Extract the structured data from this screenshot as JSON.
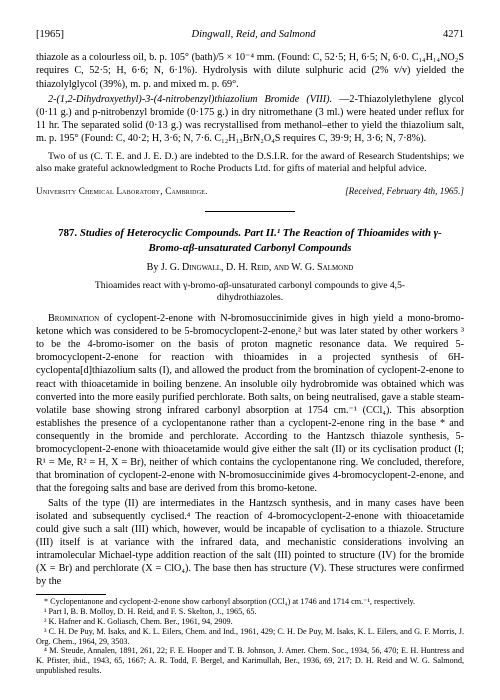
{
  "header": {
    "year": "[1965]",
    "running": "Dingwall, Reid, and Salmond",
    "page": "4271"
  },
  "top_paragraphs": {
    "p1": "thiazole as a colourless oil, b. p. 105° (bath)/5 × 10⁻⁴ mm. (Found: C, 52·5; H, 6·5; N, 6·0. C₁₄H₁₄NO₂S requires C, 52·5; H, 6·6; N, 6·1%). Hydrolysis with dilute sulphuric acid (2% v/v) yielded the thiazolylglycol (39%), m. p. and mixed m. p. 69°.",
    "p2_title": "2-(1,2-Dihydroxyethyl)-3-(4-nitrobenzyl)thiazolium Bromide (VIII).",
    "p2": "—2-Thiazolylethylene glycol (0·11 g.) and p-nitrobenzyl bromide (0·175 g.) in dry nitromethane (3 ml.) were heated under reflux for 11 hr. The separated solid (0·13 g.) was recrystallised from methanol–ether to yield the thiazolium salt, m. p. 195° (Found: C, 40·2; H, 3·6; N, 7·6. C₁₂H₁₃BrN₂O₄S requires C, 39·9; H, 3·6; N, 7·8%)."
  },
  "ack": "Two of us (C. T. E. and J. E. D.) are indebted to the D.S.I.R. for the award of Research Studentships; we also make grateful acknowledgment to Roche Products Ltd. for gifts of material and helpful advice.",
  "affil": {
    "left": "University Chemical Laboratory, Cambridge.",
    "right": "[Received, February 4th, 1965.]"
  },
  "article": {
    "number": "787.",
    "title": "Studies of Heterocyclic Compounds. Part II.¹ The Reaction of Thioamides with γ-Bromo-αβ-unsaturated Carbonyl Compounds",
    "authors_by": "By",
    "authors": "J. G. Dingwall, D. H. Reid, and W. G. Salmond",
    "abstract": "Thioamides react with γ-bromo-αβ-unsaturated carbonyl compounds to give 4,5-dihydrothiazoles.",
    "body1_lead": "Bromination",
    "body1": " of cyclopent-2-enone with N-bromosuccinimide gives in high yield a mono-bromo-ketone which was considered to be 5-bromocyclopent-2-enone,² but was later stated by other workers ³ to be the 4-bromo-isomer on the basis of proton magnetic resonance data. We required 5-bromocyclopent-2-enone for reaction with thioamides in a projected synthesis of 6H-cyclopenta[d]thiazolium salts (I), and allowed the product from the bromination of cyclopent-2-enone to react with thioacetamide in boiling benzene. An insoluble oily hydrobromide was obtained which was converted into the more easily purified perchlorate. Both salts, on being neutralised, gave a stable steam-volatile base showing strong infrared carbonyl absorption at 1754 cm.⁻¹ (CCl₄). This absorption establishes the presence of a cyclopentanone rather than a cyclopent-2-enone ring in the base * and consequently in the bromide and perchlorate. According to the Hantzsch thiazole synthesis, 5-bromocyclopent-2-enone with thioacetamide would give either the salt (II) or its cyclisation product (I; R¹ = Me, R² = H, X = Br), neither of which contains the cyclopentanone ring. We concluded, therefore, that bromination of cyclopent-2-enone with N-bromosuccinimide gives 4-bromocyclopent-2-enone, and that the foregoing salts and base are derived from this bromo-ketone.",
    "body2": "Salts of the type (II) are intermediates in the Hantzsch synthesis, and in many cases have been isolated and subsequently cyclised.⁴ The reaction of 4-bromocyclopent-2-enone with thioacetamide could give such a salt (III) which, however, would be incapable of cyclisation to a thiazole. Structure (III) itself is at variance with the infrared data, and mechanistic considerations involving an intramolecular Michael-type addition reaction of the salt (III) pointed to structure (IV) for the bromide (X = Br) and perchlorate (X = ClO₄). The base then has structure (V). These structures were confirmed by the"
  },
  "footnotes": {
    "star": "* Cyclopentanone and cyclopent-2-enone show carbonyl absorption (CCl₄) at 1746 and 1714 cm.⁻¹, respectively.",
    "f1": "¹ Part I, B. B. Molloy, D. H. Reid, and F. S. Skelton, J., 1965, 65.",
    "f2": "² K. Hafner and K. Goliasch, Chem. Ber., 1961, 94, 2909.",
    "f3": "³ C. H. De Puy, M. Isaks, and K. L. Eilers, Chem. and Ind., 1961, 429; C. H. De Puy, M. Isaks, K. L. Eilers, and G. F. Morris, J. Org. Chem., 1964, 29, 3503.",
    "f4": "⁴ M. Steude, Annalen, 1891, 261, 22; F. E. Hooper and T. B. Johnson, J. Amer. Chem. Soc., 1934, 56, 470; E. H. Huntress and K. Pfister, ibid., 1943, 65, 1667; A. R. Todd, F. Bergel, and Karimullah, Ber., 1936, 69, 217; D. H. Reid and W. G. Salmond, unpublished results."
  }
}
